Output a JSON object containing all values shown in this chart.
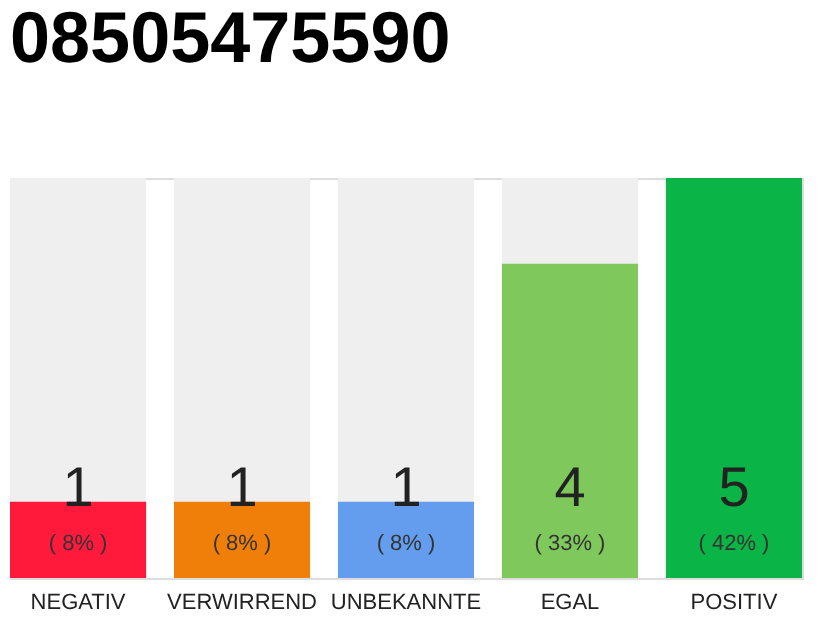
{
  "chart_data": {
    "type": "bar",
    "title": "08505475590",
    "categories": [
      "NEGATIV",
      "VERWIRREND",
      "UNBEKANNTE",
      "EGAL",
      "POSITIV"
    ],
    "values": [
      8,
      8,
      8,
      33,
      42
    ],
    "colors": [
      "#ff1a3c",
      "#f07f0a",
      "#649cee",
      "#7ec85c",
      "#0ab446"
    ],
    "value_labels": [
      "( 8% )",
      "( 8% )",
      "( 8% )",
      "( 33% )",
      "( 42% )"
    ],
    "annotations": [
      "1",
      "1",
      "1",
      "4",
      "5"
    ]
  }
}
